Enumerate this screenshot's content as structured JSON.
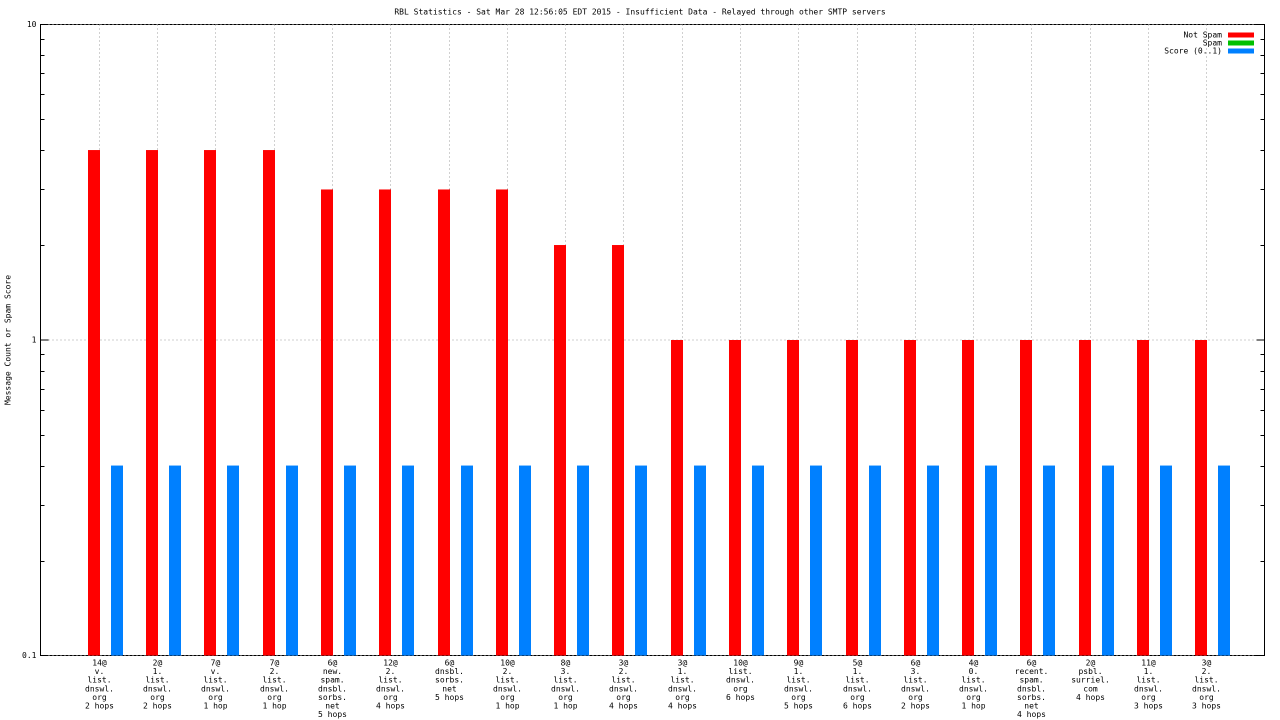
{
  "chart_data": {
    "type": "bar",
    "title": "RBL Statistics - Sat Mar 28 12:56:05 EDT 2015 - Insufficient Data - Relayed through other SMTP servers",
    "y_label": "Message Count or Spam Score",
    "categories": [
      [
        "14@",
        "v.",
        "list.",
        "dnswl.",
        "org",
        "2 hops"
      ],
      [
        "2@",
        "1.",
        "list.",
        "dnswl.",
        "org",
        "2 hops"
      ],
      [
        "7@",
        "v.",
        "list.",
        "dnswl.",
        "org",
        "1 hop"
      ],
      [
        "7@",
        "2.",
        "list.",
        "dnswl.",
        "org",
        "1 hop"
      ],
      [
        "6@",
        "new.",
        "spam.",
        "dnsbl.",
        "sorbs.",
        "net",
        "5 hops"
      ],
      [
        "12@",
        "2.",
        "list.",
        "dnswl.",
        "org",
        "4 hops"
      ],
      [
        "6@",
        "dnsbl.",
        "sorbs.",
        "net",
        "5 hops"
      ],
      [
        "10@",
        "2.",
        "list.",
        "dnswl.",
        "org",
        "1 hop"
      ],
      [
        "8@",
        "3.",
        "list.",
        "dnswl.",
        "org",
        "1 hop"
      ],
      [
        "3@",
        "2.",
        "list.",
        "dnswl.",
        "org",
        "4 hops"
      ],
      [
        "3@",
        "1.",
        "list.",
        "dnswl.",
        "org",
        "4 hops"
      ],
      [
        "10@",
        "list.",
        "dnswl.",
        "org",
        "6 hops"
      ],
      [
        "9@",
        "1.",
        "list.",
        "dnswl.",
        "org",
        "5 hops"
      ],
      [
        "5@",
        "1.",
        "list.",
        "dnswl.",
        "org",
        "6 hops"
      ],
      [
        "6@",
        "3.",
        "list.",
        "dnswl.",
        "org",
        "2 hops"
      ],
      [
        "4@",
        "0.",
        "list.",
        "dnswl.",
        "org",
        "1 hop"
      ],
      [
        "6@",
        "recent.",
        "spam.",
        "dnsbl.",
        "sorbs.",
        "net",
        "4 hops"
      ],
      [
        "2@",
        "psbl.",
        "surriel.",
        "com",
        "4 hops"
      ],
      [
        "11@",
        "1.",
        "list.",
        "dnswl.",
        "org",
        "3 hops"
      ],
      [
        "3@",
        "2.",
        "list.",
        "dnswl.",
        "org",
        "3 hops"
      ]
    ],
    "series": [
      {
        "name": "Not Spam",
        "color": "#ff0000",
        "values": [
          4,
          4,
          4,
          4,
          3,
          3,
          3,
          3,
          2,
          2,
          1,
          1,
          1,
          1,
          1,
          1,
          1,
          1,
          1,
          1
        ]
      },
      {
        "name": "Spam",
        "color": "#00c000",
        "values": [
          null,
          null,
          null,
          null,
          null,
          null,
          null,
          null,
          null,
          null,
          null,
          null,
          null,
          null,
          null,
          null,
          null,
          null,
          null,
          null
        ]
      },
      {
        "name": "Score (0..1)",
        "color": "#0080ff",
        "values": [
          0.4,
          0.4,
          0.4,
          0.4,
          0.4,
          0.4,
          0.4,
          0.4,
          0.4,
          0.4,
          0.4,
          0.4,
          0.4,
          0.4,
          0.4,
          0.4,
          0.4,
          0.4,
          0.4,
          0.4
        ]
      }
    ],
    "log_scale": true,
    "ylim": [
      0.1,
      10
    ],
    "yticks": [
      0.1,
      1,
      10
    ],
    "yminorticks": [
      0.2,
      0.3,
      0.4,
      0.5,
      0.6,
      0.7,
      0.8,
      0.9,
      2,
      3,
      4,
      5,
      6,
      7,
      8,
      9
    ],
    "grid": true,
    "legend": "top-right"
  }
}
